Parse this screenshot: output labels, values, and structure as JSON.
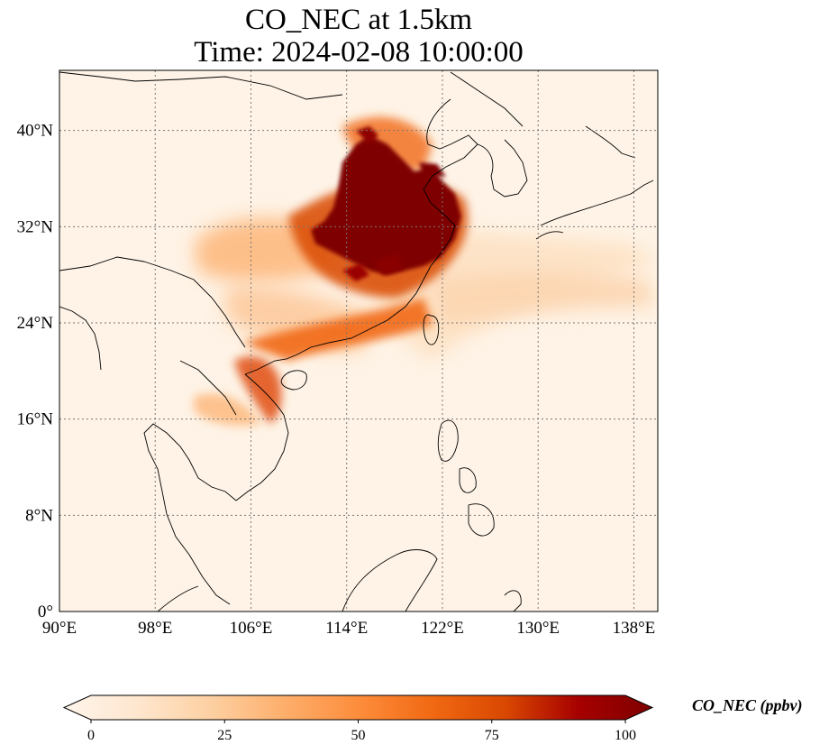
{
  "title": {
    "line1": "CO_NEC at 1.5km",
    "line2": "Time: 2024-02-08 10:00:00"
  },
  "map": {
    "lon_range": [
      90,
      140
    ],
    "lat_range": [
      0,
      45
    ],
    "gridlines": true,
    "lon_ticks": [
      {
        "value": 90,
        "label": "90°E"
      },
      {
        "value": 98,
        "label": "98°E"
      },
      {
        "value": 106,
        "label": "106°E"
      },
      {
        "value": 114,
        "label": "114°E"
      },
      {
        "value": 122,
        "label": "122°E"
      },
      {
        "value": 130,
        "label": "130°E"
      },
      {
        "value": 138,
        "label": "138°E"
      }
    ],
    "lat_ticks": [
      {
        "value": 0,
        "label": "0°"
      },
      {
        "value": 8,
        "label": "8°N"
      },
      {
        "value": 16,
        "label": "16°N"
      },
      {
        "value": 24,
        "label": "24°N"
      },
      {
        "value": 32,
        "label": "32°N"
      },
      {
        "value": 40,
        "label": "40°N"
      }
    ]
  },
  "colorbar": {
    "title": "CO_NEC (ppbv)",
    "min": 0,
    "max": 100,
    "extend": "both",
    "ticks": [
      {
        "value": 0,
        "label": "0"
      },
      {
        "value": 25,
        "label": "25"
      },
      {
        "value": 50,
        "label": "50"
      },
      {
        "value": 75,
        "label": "75"
      },
      {
        "value": 100,
        "label": "100"
      }
    ],
    "colors": [
      "#fff5eb",
      "#fee6ce",
      "#fdd0a2",
      "#fdae6b",
      "#fd8d3c",
      "#f16913",
      "#d94801",
      "#a60000",
      "#7f0000"
    ]
  }
}
